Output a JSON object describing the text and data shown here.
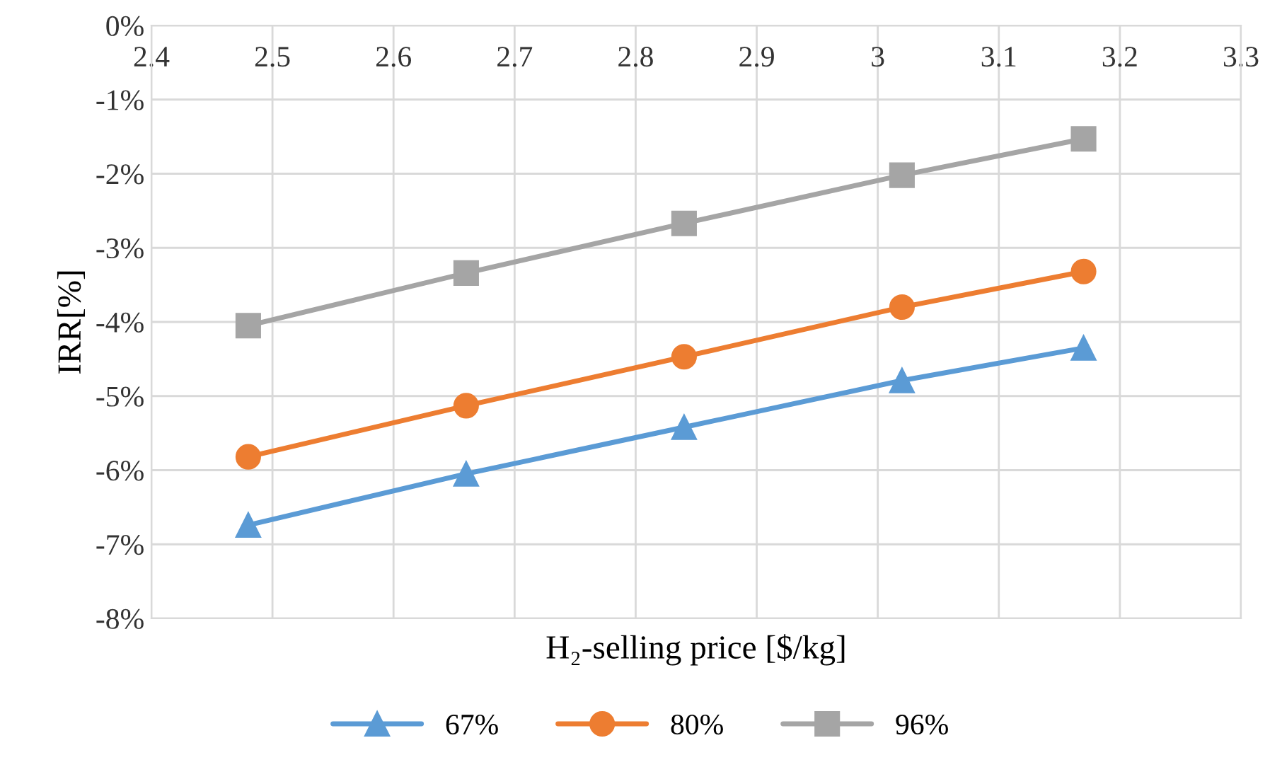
{
  "chart_data": {
    "type": "line",
    "xlabel": "H₂-selling price [$/kg]",
    "ylabel": "IRR[%]",
    "xlim": [
      2.4,
      3.3
    ],
    "xticks": [
      2.4,
      2.5,
      2.6,
      2.7,
      2.8,
      2.9,
      3,
      3.1,
      3.2,
      3.3
    ],
    "ylim": [
      -8,
      0
    ],
    "yticks": [
      {
        "value": -8,
        "label": "-8%"
      },
      {
        "value": -7,
        "label": "-7%"
      },
      {
        "value": -6,
        "label": "-6%"
      },
      {
        "value": -5,
        "label": "-5%"
      },
      {
        "value": -4,
        "label": "-4%"
      },
      {
        "value": -3,
        "label": "-3%"
      },
      {
        "value": -2,
        "label": "-2%"
      },
      {
        "value": -1,
        "label": "-1%"
      },
      {
        "value": 0,
        "label": "0%"
      }
    ],
    "x": [
      2.48,
      2.66,
      2.84,
      3.02,
      3.17
    ],
    "grid": true,
    "legend": "bottom",
    "line_style": "solid",
    "series": [
      {
        "name": "67%",
        "color": "#5b9bd5",
        "marker": "triangle",
        "values": [
          -6.74,
          -6.05,
          -5.42,
          -4.79,
          -4.35
        ]
      },
      {
        "name": "80%",
        "color": "#ed7d31",
        "marker": "circle",
        "values": [
          -5.82,
          -5.13,
          -4.47,
          -3.8,
          -3.32
        ]
      },
      {
        "name": "96%",
        "color": "#a5a5a5",
        "marker": "square",
        "values": [
          -4.05,
          -3.34,
          -2.67,
          -2.02,
          -1.53
        ]
      }
    ]
  }
}
